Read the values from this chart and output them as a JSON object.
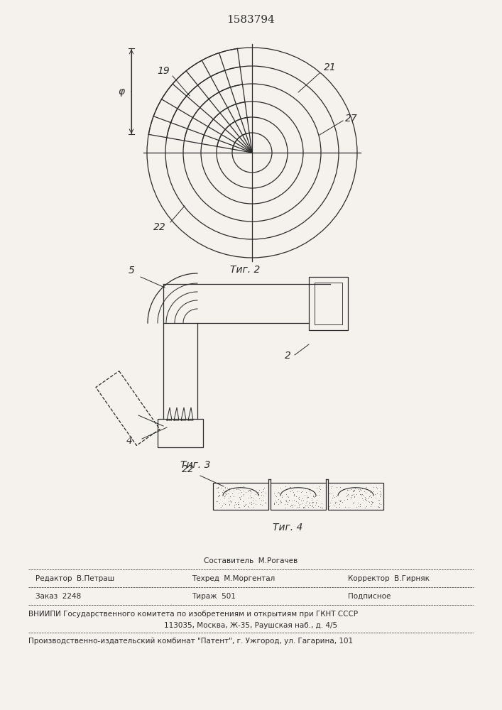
{
  "title": "1583794",
  "fig2_caption": "Τиг. 2",
  "fig3_caption": "Τиг. 3",
  "fig4_caption": "Τиг. 4",
  "label_19": "19",
  "label_21": "21",
  "label_27": "27",
  "label_22_fig2": "22",
  "label_phi": "φ",
  "label_5": "5",
  "label_2": "2",
  "label_4": "4",
  "label_22_fig4": "22",
  "footer_line1": "Составитель  М.Рогачев",
  "footer_line2_left": "Редактор  В.Петраш",
  "footer_line2_mid": "Техред  М.Моргентал",
  "footer_line2_right": "Корректор  В.Гирняк",
  "footer_line3_left": "Заказ  2248",
  "footer_line3_mid": "Тираж  501",
  "footer_line3_right": "Подписное",
  "footer_line4": "ВНИИПИ Государственного комитета по изобретениям и открытиям при ГКНТ СССР",
  "footer_line5": "113035, Москва, Ж-35, Раушская наб., д. 4/5",
  "footer_line6": "Производственно-издательский комбинат \"Патент\", г. Ужгород, ул. Гагарина, 101",
  "bg_color": "#f5f2ee",
  "line_color": "#2a2a2a",
  "text_color": "#2a2a2a"
}
